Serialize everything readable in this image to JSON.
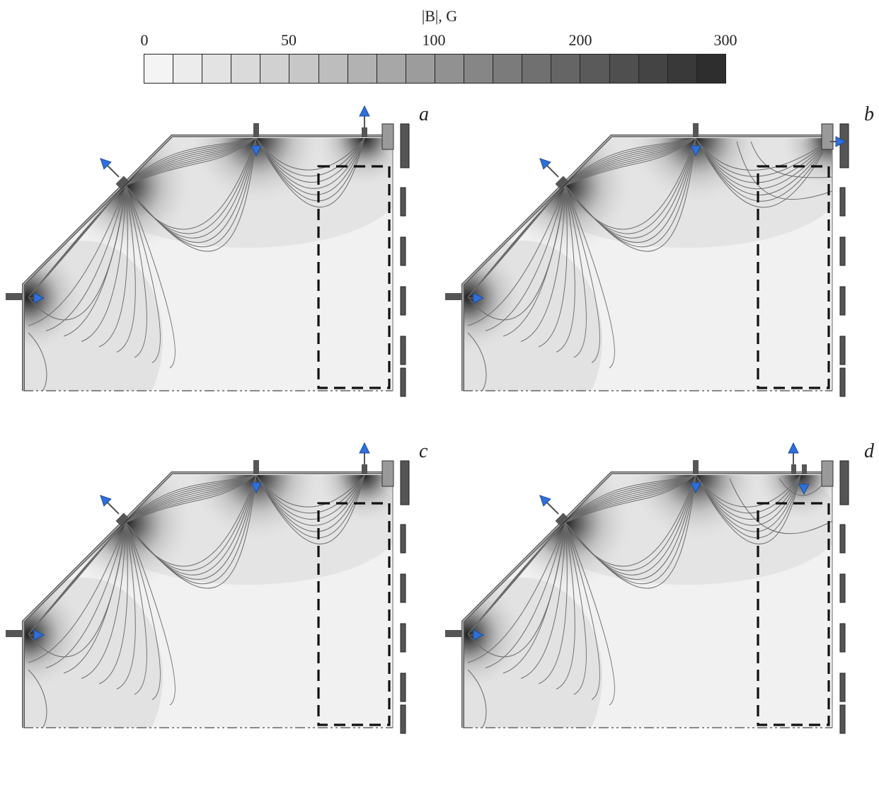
{
  "colorbar": {
    "title": "|B|, G",
    "ticks": [
      "0",
      "50",
      "100",
      "200",
      "300"
    ],
    "swatches": [
      "#f4f4f4",
      "#ececec",
      "#e3e3e3",
      "#dadada",
      "#d1d1d1",
      "#c7c7c7",
      "#bdbdbd",
      "#b2b2b2",
      "#a7a7a7",
      "#9c9c9c",
      "#919191",
      "#868686",
      "#7b7b7b",
      "#707070",
      "#656565",
      "#5a5a5a",
      "#4f4f4f",
      "#444444",
      "#393939",
      "#2e2e2e"
    ]
  },
  "panels": [
    {
      "letter": "a"
    },
    {
      "letter": "b"
    },
    {
      "letter": "c"
    },
    {
      "letter": "d"
    }
  ],
  "colors": {
    "arrow": "#2f6fd8",
    "wall": "#555555",
    "field_line": "#6a6a6a",
    "dashed_box": "#111111"
  }
}
